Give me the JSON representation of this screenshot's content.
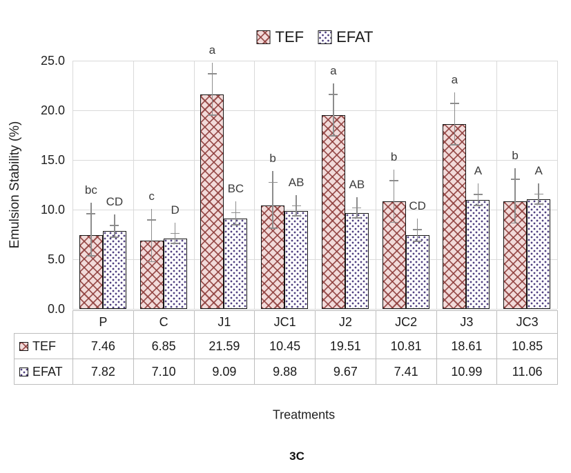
{
  "figure": {
    "caption": "3C"
  },
  "chart_data": {
    "type": "bar",
    "title": "",
    "categories": [
      "P",
      "C",
      "J1",
      "JC1",
      "J2",
      "JC2",
      "J3",
      "JC3"
    ],
    "series": [
      {
        "name": "TEF",
        "values": [
          7.46,
          6.85,
          21.59,
          10.45,
          19.51,
          10.81,
          18.61,
          10.85
        ],
        "errors": [
          2.1,
          2.1,
          2.1,
          2.3,
          2.1,
          2.1,
          2.1,
          2.2
        ],
        "sig_letters": [
          "bc",
          "c",
          "a",
          "b",
          "a",
          "b",
          "a",
          "b"
        ],
        "fill": "#f2dbda",
        "pattern": "diagonal-crosshatch",
        "pattern_color": "#8c3a38"
      },
      {
        "name": "EFAT",
        "values": [
          7.82,
          7.1,
          9.09,
          9.88,
          9.67,
          7.41,
          10.99,
          11.06
        ],
        "errors": [
          0.6,
          0.5,
          0.6,
          0.5,
          0.5,
          0.6,
          0.55,
          0.5
        ],
        "sig_letters": [
          "CD",
          "D",
          "BC",
          "AB",
          "AB",
          "CD",
          "A",
          "A"
        ],
        "fill": "#ffffff",
        "pattern": "dots",
        "pattern_color": "#4f4080"
      }
    ],
    "xlabel": "Treatments",
    "ylabel": "Emulsion Stability (%)",
    "ylim": [
      0,
      25
    ],
    "ytick_step": 5,
    "ytick_labels": [
      "0.0",
      "5.0",
      "10.0",
      "15.0",
      "20.0",
      "25.0"
    ],
    "grid": true,
    "legend_position": "top",
    "data_table": true,
    "error_bar_color": "#8c8c8c",
    "gridline_color": "#d9d9d9"
  }
}
